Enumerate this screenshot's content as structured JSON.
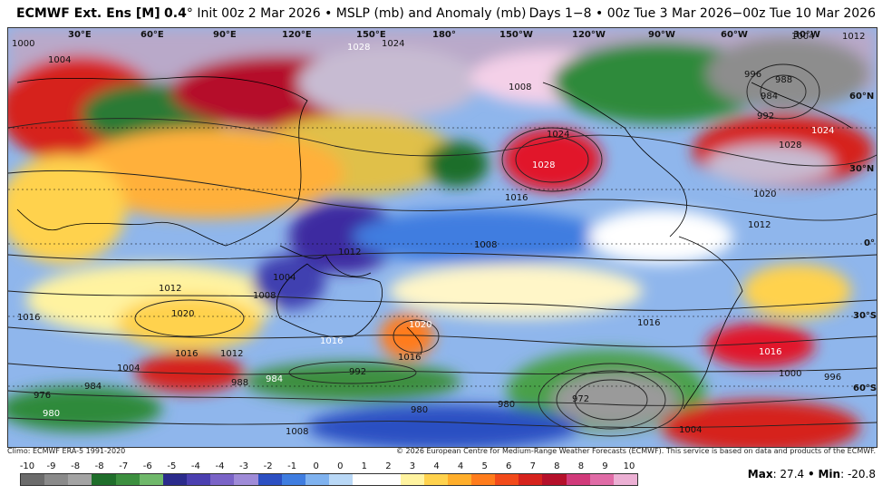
{
  "header": {
    "model_bold": "ECMWF Ext. Ens [M]",
    "res_bold": "0.4",
    "degree": "°",
    "init_text": "Init 00z 2 Mar 2026",
    "bullet": "•",
    "field_text": "MSLP (mb) and Anomaly (mb)",
    "valid_text": "Days 1−8 • 00z Tue 3 Mar 2026−00z Tue 10 Mar 2026"
  },
  "longitude_labels": [
    "30°E",
    "60°E",
    "90°E",
    "120°E",
    "150°E",
    "180°",
    "150°W",
    "120°W",
    "90°W",
    "60°W",
    "30°W"
  ],
  "latitude_labels": [
    "60°N",
    "30°N",
    "0°",
    "30°S",
    "60°S"
  ],
  "isobar_labels": [
    {
      "text": "1000"
    },
    {
      "text": "1004"
    },
    {
      "text": "1028"
    },
    {
      "text": "1024"
    },
    {
      "text": "1028"
    },
    {
      "text": "1024"
    },
    {
      "text": "1016"
    },
    {
      "text": "1028"
    },
    {
      "text": "1024"
    },
    {
      "text": "1020"
    },
    {
      "text": "1012"
    },
    {
      "text": "1008"
    },
    {
      "text": "1004"
    },
    {
      "text": "1012"
    },
    {
      "text": "1008"
    },
    {
      "text": "1016"
    },
    {
      "text": "1020"
    },
    {
      "text": "1016"
    },
    {
      "text": "1012"
    },
    {
      "text": "1004"
    },
    {
      "text": "1016"
    },
    {
      "text": "1020"
    },
    {
      "text": "1016"
    },
    {
      "text": "1016"
    },
    {
      "text": "1016"
    },
    {
      "text": "1000"
    },
    {
      "text": "996"
    },
    {
      "text": "992"
    },
    {
      "text": "984"
    },
    {
      "text": "988"
    },
    {
      "text": "984"
    },
    {
      "text": "976"
    },
    {
      "text": "980"
    },
    {
      "text": "980"
    },
    {
      "text": "980"
    },
    {
      "text": "972"
    },
    {
      "text": "1008"
    },
    {
      "text": "1004"
    },
    {
      "text": "992"
    },
    {
      "text": "988"
    },
    {
      "text": "996"
    },
    {
      "text": "984"
    },
    {
      "text": "1012"
    },
    {
      "text": "1004"
    },
    {
      "text": "1012"
    },
    {
      "text": "1008"
    }
  ],
  "credits": {
    "climo": "Climo: ECMWF ERA-5 1991-2020",
    "copyright": "© 2026 European Centre for Medium-Range Weather Forecasts (ECMWF). This service is based on data and products of the ECMWF."
  },
  "scale": {
    "ticks": [
      "-10",
      "-9",
      "-8",
      "-8",
      "-7",
      "-6",
      "-5",
      "-4",
      "-4",
      "-3",
      "-2",
      "-1",
      "0",
      "0",
      "1",
      "2",
      "3",
      "4",
      "4",
      "5",
      "6",
      "7",
      "8",
      "8",
      "9",
      "10"
    ],
    "colors": [
      "#6b6b6b",
      "#8a8a8a",
      "#a3a3a3",
      "#1f6e2b",
      "#3c8f3f",
      "#6fb86a",
      "#2b2b8c",
      "#4b3fb0",
      "#7a63c7",
      "#9f8bd8",
      "#2c4fc2",
      "#3f7de0",
      "#7fb2ef",
      "#b9d8f6",
      "#ffffff",
      "#ffffff",
      "#fff3a0",
      "#ffd24d",
      "#ffae2b",
      "#ff7c1c",
      "#f24a1a",
      "#d6231d",
      "#b5102a",
      "#d13a7a",
      "#e06ba6",
      "#ecb0d4"
    ],
    "max_label": "Max",
    "max_value": "27.4",
    "sep": "•",
    "min_label": "Min",
    "min_value": "-20.8"
  }
}
